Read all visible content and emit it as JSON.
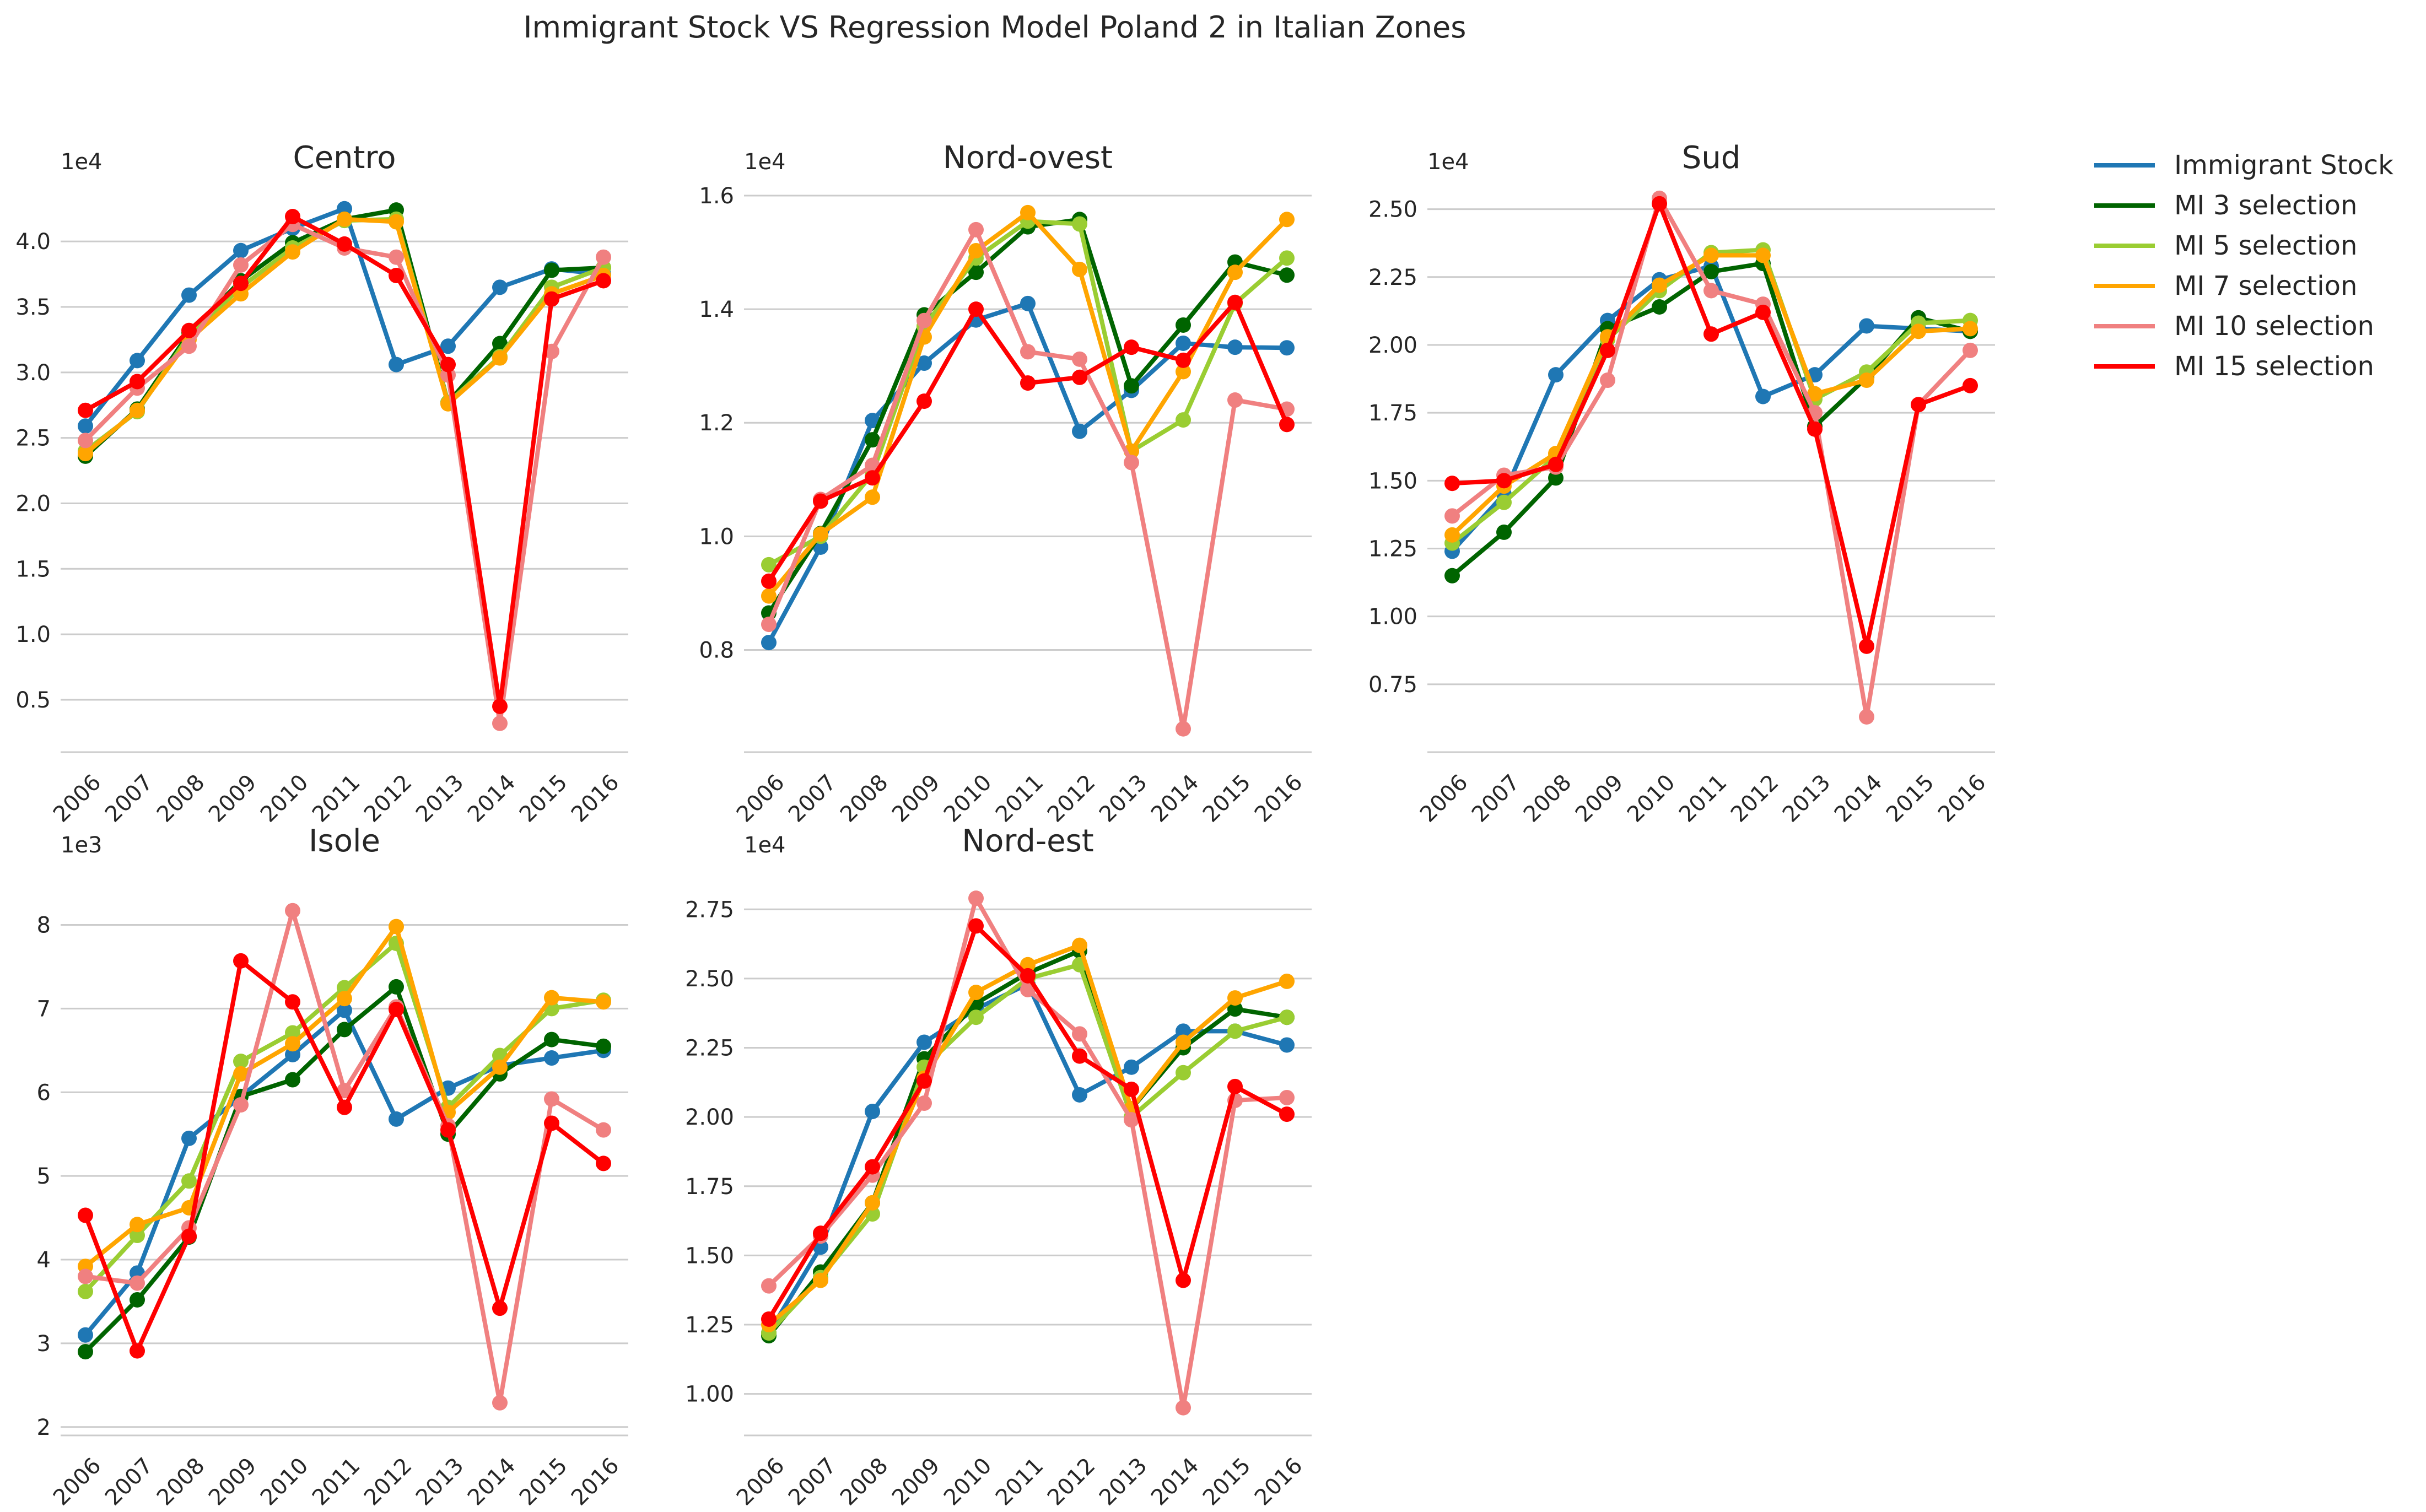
{
  "figure": {
    "title": "Immigrant Stock VS Regression Model Poland 2 in Italian Zones"
  },
  "legend": {
    "placement": "top-right, outside plots",
    "entries": [
      {
        "label": "Immigrant Stock",
        "color": "#1f77b4"
      },
      {
        "label": "MI 3 selection",
        "color": "#006400"
      },
      {
        "label": "MI 5 selection",
        "color": "#9acd32"
      },
      {
        "label": "MI 7 selection",
        "color": "#ffa500"
      },
      {
        "label": "MI 10 selection",
        "color": "#f08080"
      },
      {
        "label": "MI 15 selection",
        "color": "#ff0000"
      }
    ]
  },
  "chart_data": [
    {
      "type": "line",
      "title": "Centro",
      "offset_label": "1e4",
      "categories": [
        "2006",
        "2007",
        "2008",
        "2009",
        "2010",
        "2011",
        "2012",
        "2013",
        "2014",
        "2015",
        "2016"
      ],
      "ylim": [
        0.1,
        4.35
      ],
      "yticks": [
        0.5,
        1.0,
        1.5,
        2.0,
        2.5,
        3.0,
        3.5,
        4.0
      ],
      "ytick_labels": [
        "0.5",
        "1.0",
        "1.5",
        "2.0",
        "2.5",
        "3.0",
        "3.5",
        "4.0"
      ],
      "grid": "horizontal",
      "series": [
        {
          "name": "Immigrant Stock",
          "color": "#1f77b4",
          "values": [
            2.59,
            3.09,
            3.59,
            3.93,
            4.1,
            4.25,
            3.06,
            3.2,
            3.65,
            3.79,
            3.75
          ]
        },
        {
          "name": "MI 3 selection",
          "color": "#006400",
          "values": [
            2.36,
            2.72,
            3.3,
            3.7,
            3.99,
            4.17,
            4.24,
            2.77,
            3.22,
            3.78,
            3.8
          ]
        },
        {
          "name": "MI 5 selection",
          "color": "#9acd32",
          "values": [
            2.4,
            2.7,
            3.28,
            3.65,
            3.95,
            4.16,
            4.17,
            2.77,
            3.12,
            3.65,
            3.8
          ]
        },
        {
          "name": "MI 7 selection",
          "color": "#ffa500",
          "values": [
            2.38,
            2.71,
            3.25,
            3.6,
            3.92,
            4.17,
            4.15,
            2.76,
            3.11,
            3.6,
            3.74
          ]
        },
        {
          "name": "MI 10 selection",
          "color": "#f08080",
          "values": [
            2.48,
            2.88,
            3.2,
            3.82,
            4.13,
            3.95,
            3.88,
            2.98,
            0.32,
            3.16,
            3.88
          ]
        },
        {
          "name": "MI 15 selection",
          "color": "#ff0000",
          "values": [
            2.71,
            2.93,
            3.32,
            3.68,
            4.19,
            3.98,
            3.74,
            3.06,
            0.45,
            3.56,
            3.7
          ]
        }
      ]
    },
    {
      "type": "line",
      "title": "Nord-ovest",
      "offset_label": "1e4",
      "categories": [
        "2006",
        "2007",
        "2008",
        "2009",
        "2010",
        "2011",
        "2012",
        "2013",
        "2014",
        "2015",
        "2016"
      ],
      "ylim": [
        0.62,
        1.6
      ],
      "yticks": [
        0.8,
        1.0,
        1.2,
        1.4,
        1.6
      ],
      "ytick_labels": [
        "0.8",
        "1.0",
        "1.2",
        "1.4",
        "1.6"
      ],
      "grid": "horizontal",
      "series": [
        {
          "name": "Immigrant Stock",
          "color": "#1f77b4",
          "values": [
            0.813,
            0.981,
            1.204,
            1.305,
            1.381,
            1.41,
            1.185,
            1.257,
            1.34,
            1.333,
            1.332
          ]
        },
        {
          "name": "MI 3 selection",
          "color": "#006400",
          "values": [
            0.865,
            1.005,
            1.17,
            1.39,
            1.465,
            1.545,
            1.558,
            1.265,
            1.372,
            1.483,
            1.46
          ]
        },
        {
          "name": "MI 5 selection",
          "color": "#9acd32",
          "values": [
            0.95,
            1.0,
            1.11,
            1.37,
            1.49,
            1.555,
            1.55,
            1.15,
            1.205,
            1.41,
            1.49
          ]
        },
        {
          "name": "MI 7 selection",
          "color": "#ffa500",
          "values": [
            0.895,
            1.004,
            1.069,
            1.351,
            1.503,
            1.57,
            1.47,
            1.15,
            1.29,
            1.465,
            1.558
          ]
        },
        {
          "name": "MI 10 selection",
          "color": "#f08080",
          "values": [
            0.845,
            1.065,
            1.125,
            1.38,
            1.54,
            1.325,
            1.312,
            1.13,
            0.661,
            1.24,
            1.224
          ]
        },
        {
          "name": "MI 15 selection",
          "color": "#ff0000",
          "values": [
            0.921,
            1.062,
            1.103,
            1.238,
            1.4,
            1.27,
            1.28,
            1.333,
            1.31,
            1.412,
            1.197
          ]
        }
      ]
    },
    {
      "type": "line",
      "title": "Sud",
      "offset_label": "1e4",
      "categories": [
        "2006",
        "2007",
        "2008",
        "2009",
        "2010",
        "2011",
        "2012",
        "2013",
        "2014",
        "2015",
        "2016"
      ],
      "ylim": [
        0.5,
        2.55
      ],
      "yticks": [
        0.75,
        1.0,
        1.25,
        1.5,
        1.75,
        2.0,
        2.25,
        2.5
      ],
      "ytick_labels": [
        "0.75",
        "1.00",
        "1.25",
        "1.50",
        "1.75",
        "2.00",
        "2.25",
        "2.50"
      ],
      "grid": "horizontal",
      "series": [
        {
          "name": "Immigrant Stock",
          "color": "#1f77b4",
          "values": [
            1.24,
            1.45,
            1.89,
            2.09,
            2.24,
            2.29,
            1.81,
            1.89,
            2.07,
            2.06,
            2.05
          ]
        },
        {
          "name": "MI 3 selection",
          "color": "#006400",
          "values": [
            1.15,
            1.31,
            1.51,
            2.06,
            2.14,
            2.27,
            2.3,
            1.7,
            1.88,
            2.1,
            2.05
          ]
        },
        {
          "name": "MI 5 selection",
          "color": "#9acd32",
          "values": [
            1.27,
            1.42,
            1.59,
            2.02,
            2.2,
            2.34,
            2.35,
            1.8,
            1.9,
            2.08,
            2.09
          ]
        },
        {
          "name": "MI 7 selection",
          "color": "#ffa500",
          "values": [
            1.3,
            1.48,
            1.6,
            2.03,
            2.22,
            2.33,
            2.33,
            1.82,
            1.87,
            2.05,
            2.06
          ]
        },
        {
          "name": "MI 10 selection",
          "color": "#f08080",
          "values": [
            1.37,
            1.52,
            1.55,
            1.87,
            2.54,
            2.2,
            2.15,
            1.75,
            0.63,
            1.78,
            1.98
          ]
        },
        {
          "name": "MI 15 selection",
          "color": "#ff0000",
          "values": [
            1.49,
            1.5,
            1.56,
            1.98,
            2.52,
            2.04,
            2.12,
            1.69,
            0.89,
            1.78,
            1.85
          ]
        }
      ]
    },
    {
      "type": "line",
      "title": "Isole",
      "offset_label": "1e3",
      "categories": [
        "2006",
        "2007",
        "2008",
        "2009",
        "2010",
        "2011",
        "2012",
        "2013",
        "2014",
        "2015",
        "2016"
      ],
      "ylim": [
        1.9,
        8.55
      ],
      "yticks": [
        2,
        3,
        4,
        5,
        6,
        7,
        8
      ],
      "ytick_labels": [
        "2",
        "3",
        "4",
        "5",
        "6",
        "7",
        "8"
      ],
      "grid": "horizontal",
      "series": [
        {
          "name": "Immigrant Stock",
          "color": "#1f77b4",
          "values": [
            3.1,
            3.84,
            5.45,
            5.95,
            6.45,
            6.98,
            5.68,
            6.05,
            6.32,
            6.41,
            6.5
          ]
        },
        {
          "name": "MI 3 selection",
          "color": "#006400",
          "values": [
            2.9,
            3.52,
            4.27,
            5.95,
            6.15,
            6.75,
            7.26,
            5.5,
            6.22,
            6.63,
            6.55
          ]
        },
        {
          "name": "MI 5 selection",
          "color": "#9acd32",
          "values": [
            3.62,
            4.29,
            4.94,
            6.37,
            6.71,
            7.25,
            7.78,
            5.82,
            6.44,
            7.0,
            7.1
          ]
        },
        {
          "name": "MI 7 selection",
          "color": "#ffa500",
          "values": [
            3.92,
            4.42,
            4.62,
            6.22,
            6.58,
            7.12,
            7.98,
            5.76,
            6.3,
            7.13,
            7.08
          ]
        },
        {
          "name": "MI 10 selection",
          "color": "#f08080",
          "values": [
            3.8,
            3.72,
            4.38,
            5.85,
            8.17,
            6.02,
            7.02,
            5.6,
            2.29,
            5.92,
            5.55
          ]
        },
        {
          "name": "MI 15 selection",
          "color": "#ff0000",
          "values": [
            4.53,
            2.91,
            4.28,
            7.57,
            7.08,
            5.82,
            6.99,
            5.55,
            3.42,
            5.63,
            5.15
          ]
        }
      ]
    },
    {
      "type": "line",
      "title": "Nord-est",
      "offset_label": "1e4",
      "categories": [
        "2006",
        "2007",
        "2008",
        "2009",
        "2010",
        "2011",
        "2012",
        "2013",
        "2014",
        "2015",
        "2016"
      ],
      "ylim": [
        0.85,
        2.86
      ],
      "yticks": [
        1.0,
        1.25,
        1.5,
        1.75,
        2.0,
        2.25,
        2.5,
        2.75
      ],
      "ytick_labels": [
        "1.00",
        "1.25",
        "1.50",
        "1.75",
        "2.00",
        "2.25",
        "2.50",
        "2.75"
      ],
      "grid": "horizontal",
      "series": [
        {
          "name": "Immigrant Stock",
          "color": "#1f77b4",
          "values": [
            1.22,
            1.53,
            2.02,
            2.27,
            2.39,
            2.48,
            2.08,
            2.18,
            2.31,
            2.31,
            2.26
          ]
        },
        {
          "name": "MI 3 selection",
          "color": "#006400",
          "values": [
            1.21,
            1.44,
            1.69,
            2.21,
            2.41,
            2.52,
            2.6,
            2.03,
            2.25,
            2.39,
            2.36
          ]
        },
        {
          "name": "MI 5 selection",
          "color": "#9acd32",
          "values": [
            1.22,
            1.42,
            1.65,
            2.18,
            2.36,
            2.5,
            2.55,
            2.0,
            2.16,
            2.31,
            2.36
          ]
        },
        {
          "name": "MI 7 selection",
          "color": "#ffa500",
          "values": [
            1.25,
            1.41,
            1.69,
            2.14,
            2.45,
            2.55,
            2.62,
            2.03,
            2.27,
            2.43,
            2.49
          ]
        },
        {
          "name": "MI 10 selection",
          "color": "#f08080",
          "values": [
            1.39,
            1.57,
            1.79,
            2.05,
            2.79,
            2.46,
            2.3,
            1.99,
            0.95,
            2.06,
            2.07
          ]
        },
        {
          "name": "MI 15 selection",
          "color": "#ff0000",
          "values": [
            1.27,
            1.58,
            1.82,
            2.13,
            2.69,
            2.51,
            2.22,
            2.1,
            1.41,
            2.11,
            2.01
          ]
        }
      ]
    }
  ]
}
